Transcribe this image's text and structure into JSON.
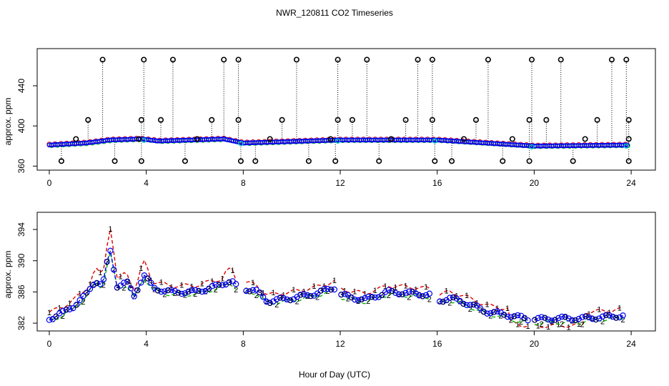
{
  "title": "NWR_120811  CO2 Timeseries",
  "xlabel": "Hour of Day (UTC)",
  "chart_data": [
    {
      "type": "scatter",
      "title": "NWR_120811  CO2 Timeseries",
      "xlabel": "",
      "ylabel": "approx. ppm",
      "xlim": [
        -0.5,
        25
      ],
      "ylim": [
        356,
        477
      ],
      "xticks": [
        0,
        4,
        8,
        12,
        16,
        20,
        24
      ],
      "yticks": [
        360,
        400,
        440
      ],
      "colors": {
        "black": "#000000",
        "red": "#dd0000",
        "green": "#00bb00",
        "blue": "#0000ee",
        "cyan": "#00cccc"
      },
      "baseline_knots": [
        [
          0,
          381
        ],
        [
          1.5,
          383
        ],
        [
          2.5,
          386
        ],
        [
          3.8,
          387
        ],
        [
          4.5,
          385
        ],
        [
          7.2,
          387
        ],
        [
          8,
          383
        ],
        [
          12,
          386
        ],
        [
          16,
          386
        ],
        [
          18,
          383
        ],
        [
          20,
          380
        ],
        [
          24,
          381
        ]
      ],
      "spikes_high": [
        2.2,
        3.9,
        5.1,
        7.2,
        7.8,
        10.2,
        11.9,
        13.1,
        15.2,
        15.8,
        18.1,
        19.9,
        21.1,
        23.2,
        23.8
      ],
      "spikes_mid": [
        1.6,
        3.8,
        4.6,
        6.7,
        7.8,
        9.6,
        11.9,
        12.5,
        14.7,
        15.8,
        17.6,
        19.8,
        20.5,
        22.6,
        23.9
      ],
      "spikes_low": [
        0.5,
        2.7,
        3.8,
        5.6,
        7.9,
        8.5,
        10.7,
        11.8,
        13.6,
        15.9,
        16.6,
        18.7,
        19.8,
        21.6,
        23.9
      ],
      "spikes_small": [
        1.1,
        3.7,
        6.1,
        9.1,
        11.6,
        14.1,
        17.1,
        19.1,
        22.1,
        23.9
      ],
      "high_value": 466,
      "mid_value": 406,
      "low_value": 365,
      "small_value": 387
    },
    {
      "type": "line",
      "title": "",
      "xlabel": "Hour of Day (UTC)",
      "ylabel": "approx. ppm",
      "xlim": [
        -0.5,
        25
      ],
      "ylim": [
        381,
        396.2
      ],
      "xticks": [
        0,
        4,
        8,
        12,
        16,
        20,
        24
      ],
      "yticks": [
        382,
        386,
        390,
        394
      ],
      "series": [
        {
          "name": "1",
          "color": "#dd0000",
          "symbol": "1",
          "offset": 0.8
        },
        {
          "name": "2",
          "color": "#00bb00",
          "symbol": "2",
          "offset": -0.3
        },
        {
          "name": "3",
          "color": "#0000ee",
          "symbol": "3",
          "offset": 0.0
        }
      ],
      "knots": [
        [
          0,
          382.6
        ],
        [
          0.5,
          383.2
        ],
        [
          1.0,
          384.2
        ],
        [
          1.5,
          385.5
        ],
        [
          1.9,
          387.5
        ],
        [
          2.2,
          386.8
        ],
        [
          2.5,
          391.5
        ],
        [
          2.8,
          386.8
        ],
        [
          3.2,
          387.2
        ],
        [
          3.5,
          385.5
        ],
        [
          3.9,
          388.2
        ],
        [
          4.3,
          386.5
        ],
        [
          5.0,
          386.0
        ],
        [
          6.0,
          386.0
        ],
        [
          7.0,
          386.8
        ],
        [
          7.5,
          387.5
        ],
        [
          7.8,
          386.4
        ],
        [
          8.0,
          386.4
        ],
        [
          8.5,
          386.2
        ],
        [
          9.0,
          384.8
        ],
        [
          10.0,
          385.2
        ],
        [
          11.0,
          385.8
        ],
        [
          11.8,
          386.6
        ],
        [
          12.0,
          385.6
        ],
        [
          13.0,
          385.0
        ],
        [
          14.0,
          386.0
        ],
        [
          15.0,
          385.8
        ],
        [
          15.8,
          385.6
        ],
        [
          16.0,
          384.8
        ],
        [
          16.5,
          385.2
        ],
        [
          17.0,
          384.8
        ],
        [
          17.5,
          384.2
        ],
        [
          18.0,
          383.5
        ],
        [
          19.0,
          383.0
        ],
        [
          19.8,
          382.5
        ],
        [
          20.0,
          382.5
        ],
        [
          21.0,
          382.6
        ],
        [
          22.0,
          382.6
        ],
        [
          23.0,
          382.8
        ],
        [
          23.7,
          383.0
        ]
      ]
    }
  ]
}
